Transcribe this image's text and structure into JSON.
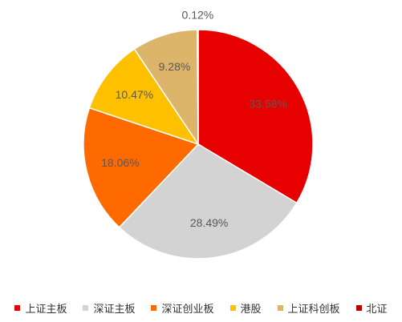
{
  "chart_data": {
    "type": "pie",
    "categories": [
      "上证主板",
      "深证主板",
      "深证创业板",
      "港股",
      "上证科创板",
      "北证"
    ],
    "values": [
      33.58,
      28.49,
      18.06,
      10.47,
      9.28,
      0.12
    ],
    "value_labels": [
      "33.58%",
      "28.49%",
      "18.06%",
      "10.47%",
      "9.28%",
      "0.12%"
    ],
    "colors": [
      "#e60000",
      "#d3d3d3",
      "#ff6a00",
      "#ffc000",
      "#dcb46a",
      "#c00000"
    ],
    "legend": "bottom"
  }
}
